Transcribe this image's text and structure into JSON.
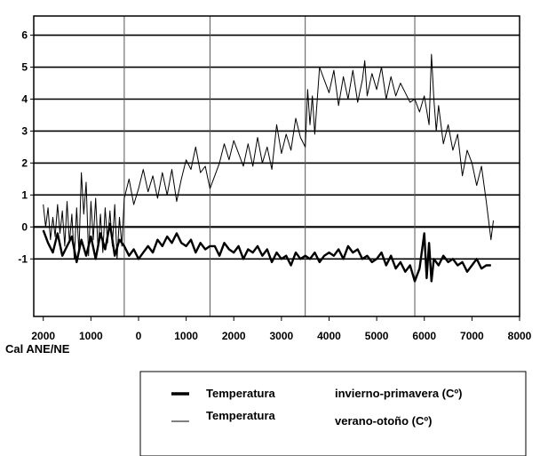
{
  "chart_data": {
    "type": "line",
    "xlabel": "Cal ANE/NE",
    "ylabel": "",
    "title": "",
    "x_ticks": [
      "2000",
      "1000",
      "0",
      "1000",
      "2000",
      "3000",
      "4000",
      "5000",
      "6000",
      "7000",
      "8000"
    ],
    "x_tick_values": [
      -2000,
      -1000,
      0,
      1000,
      2000,
      3000,
      4000,
      5000,
      6000,
      7000,
      8000
    ],
    "y_ticks": [
      "6",
      "5",
      "4",
      "3",
      "2",
      "1",
      "0",
      "-1"
    ],
    "y_tick_values": [
      6,
      5,
      4,
      3,
      2,
      1,
      0,
      -1
    ],
    "xlim": [
      -2200,
      8000
    ],
    "ylim": [
      -2.8,
      6.6
    ],
    "grid_vertical_at": [
      -300,
      1500,
      3500,
      5800
    ],
    "grid_horizontal_at": [
      6,
      5,
      4,
      3,
      2,
      1,
      0,
      -1
    ],
    "legend_position": "bottom-right",
    "series": [
      {
        "name": "invierno-primavera (Cº)",
        "legend_label": "Temperatura",
        "legend_desc": "invierno-primavera (Cº)",
        "style": "thick",
        "x": [
          -2000,
          -1900,
          -1800,
          -1700,
          -1600,
          -1500,
          -1400,
          -1300,
          -1200,
          -1100,
          -1000,
          -900,
          -800,
          -700,
          -600,
          -500,
          -400,
          -300,
          -200,
          -100,
          0,
          100,
          200,
          300,
          400,
          500,
          600,
          700,
          800,
          900,
          1000,
          1100,
          1200,
          1300,
          1400,
          1500,
          1600,
          1700,
          1800,
          1900,
          2000,
          2100,
          2200,
          2300,
          2400,
          2500,
          2600,
          2700,
          2800,
          2900,
          3000,
          3100,
          3200,
          3300,
          3400,
          3500,
          3600,
          3700,
          3800,
          3900,
          4000,
          4100,
          4200,
          4300,
          4400,
          4500,
          4600,
          4700,
          4800,
          4900,
          5000,
          5100,
          5200,
          5300,
          5400,
          5500,
          5600,
          5700,
          5800,
          5900,
          6000,
          6050,
          6100,
          6150,
          6200,
          6300,
          6400,
          6500,
          6600,
          6700,
          6800,
          6900,
          7000,
          7100,
          7200,
          7300,
          7400
        ],
        "values": [
          -0.1,
          -0.5,
          -0.8,
          -0.2,
          -0.9,
          -0.6,
          -0.3,
          -1.1,
          -0.4,
          -0.9,
          -0.3,
          -1.0,
          -0.2,
          -0.7,
          0.1,
          -0.9,
          -0.4,
          -0.6,
          -0.9,
          -0.7,
          -1.0,
          -0.8,
          -0.6,
          -0.8,
          -0.4,
          -0.6,
          -0.3,
          -0.5,
          -0.2,
          -0.5,
          -0.6,
          -0.4,
          -0.8,
          -0.5,
          -0.7,
          -0.6,
          -0.6,
          -0.9,
          -0.5,
          -0.7,
          -0.8,
          -0.6,
          -1.0,
          -0.7,
          -0.8,
          -0.6,
          -0.9,
          -0.7,
          -1.1,
          -0.8,
          -1.0,
          -0.9,
          -1.2,
          -0.8,
          -1.0,
          -0.9,
          -1.0,
          -0.8,
          -1.1,
          -0.9,
          -0.8,
          -0.9,
          -0.7,
          -1.0,
          -0.6,
          -0.8,
          -0.7,
          -1.0,
          -0.9,
          -1.1,
          -1.0,
          -0.8,
          -1.2,
          -0.9,
          -1.3,
          -1.1,
          -1.4,
          -1.2,
          -1.7,
          -1.3,
          -0.2,
          -1.6,
          -0.5,
          -1.7,
          -1.0,
          -1.2,
          -0.9,
          -1.1,
          -1.0,
          -1.2,
          -1.1,
          -1.4,
          -1.2,
          -1.0,
          -1.3,
          -1.2,
          -1.2
        ]
      },
      {
        "name": "verano-otoño (Cº)",
        "legend_label": "Temperatura",
        "legend_desc": "verano-otoño (Cº)",
        "style": "thin",
        "x": [
          -2000,
          -1950,
          -1900,
          -1850,
          -1800,
          -1750,
          -1700,
          -1650,
          -1600,
          -1550,
          -1500,
          -1450,
          -1400,
          -1350,
          -1300,
          -1250,
          -1200,
          -1150,
          -1100,
          -1050,
          -1000,
          -950,
          -900,
          -850,
          -800,
          -750,
          -700,
          -650,
          -600,
          -550,
          -500,
          -450,
          -400,
          -350,
          -300,
          -200,
          -100,
          0,
          100,
          200,
          300,
          400,
          500,
          600,
          700,
          800,
          900,
          1000,
          1100,
          1200,
          1300,
          1400,
          1500,
          1600,
          1700,
          1800,
          1900,
          2000,
          2100,
          2200,
          2300,
          2400,
          2500,
          2600,
          2700,
          2800,
          2900,
          3000,
          3100,
          3200,
          3300,
          3400,
          3500,
          3550,
          3600,
          3650,
          3700,
          3800,
          3900,
          4000,
          4100,
          4200,
          4300,
          4400,
          4500,
          4600,
          4700,
          4750,
          4800,
          4900,
          5000,
          5100,
          5200,
          5300,
          5400,
          5500,
          5600,
          5700,
          5800,
          5900,
          6000,
          6100,
          6150,
          6200,
          6250,
          6300,
          6400,
          6500,
          6600,
          6700,
          6800,
          6900,
          7000,
          7100,
          7200,
          7300,
          7400,
          7450
        ],
        "values": [
          0.7,
          0.0,
          0.6,
          -0.4,
          0.3,
          -0.3,
          0.7,
          -0.2,
          0.5,
          -0.6,
          0.8,
          -0.5,
          0.4,
          -1.0,
          0.6,
          -0.8,
          1.7,
          0.4,
          1.4,
          -0.9,
          0.8,
          -0.4,
          0.9,
          -0.7,
          0.4,
          -0.8,
          0.6,
          -0.5,
          0.5,
          -0.6,
          0.7,
          -1.0,
          0.3,
          -0.6,
          0.9,
          1.5,
          0.7,
          1.2,
          1.8,
          1.1,
          1.6,
          0.9,
          1.7,
          1.0,
          1.8,
          0.8,
          1.5,
          2.1,
          1.8,
          2.5,
          1.7,
          1.9,
          1.2,
          1.6,
          2.0,
          2.6,
          2.1,
          2.7,
          2.3,
          1.9,
          2.6,
          1.9,
          2.8,
          2.0,
          2.5,
          1.8,
          3.2,
          2.3,
          2.9,
          2.4,
          3.4,
          2.8,
          2.5,
          4.3,
          3.2,
          4.1,
          2.9,
          5.0,
          4.6,
          4.2,
          4.9,
          3.8,
          4.7,
          4.0,
          4.9,
          3.9,
          4.6,
          5.2,
          4.1,
          4.8,
          4.3,
          5.0,
          4.0,
          4.7,
          4.1,
          4.5,
          4.2,
          3.9,
          4.0,
          3.6,
          4.1,
          3.2,
          5.4,
          4.0,
          3.0,
          3.8,
          2.6,
          3.2,
          2.4,
          2.9,
          1.6,
          2.4,
          2.0,
          1.3,
          1.9,
          0.8,
          -0.4,
          0.2
        ]
      }
    ]
  }
}
